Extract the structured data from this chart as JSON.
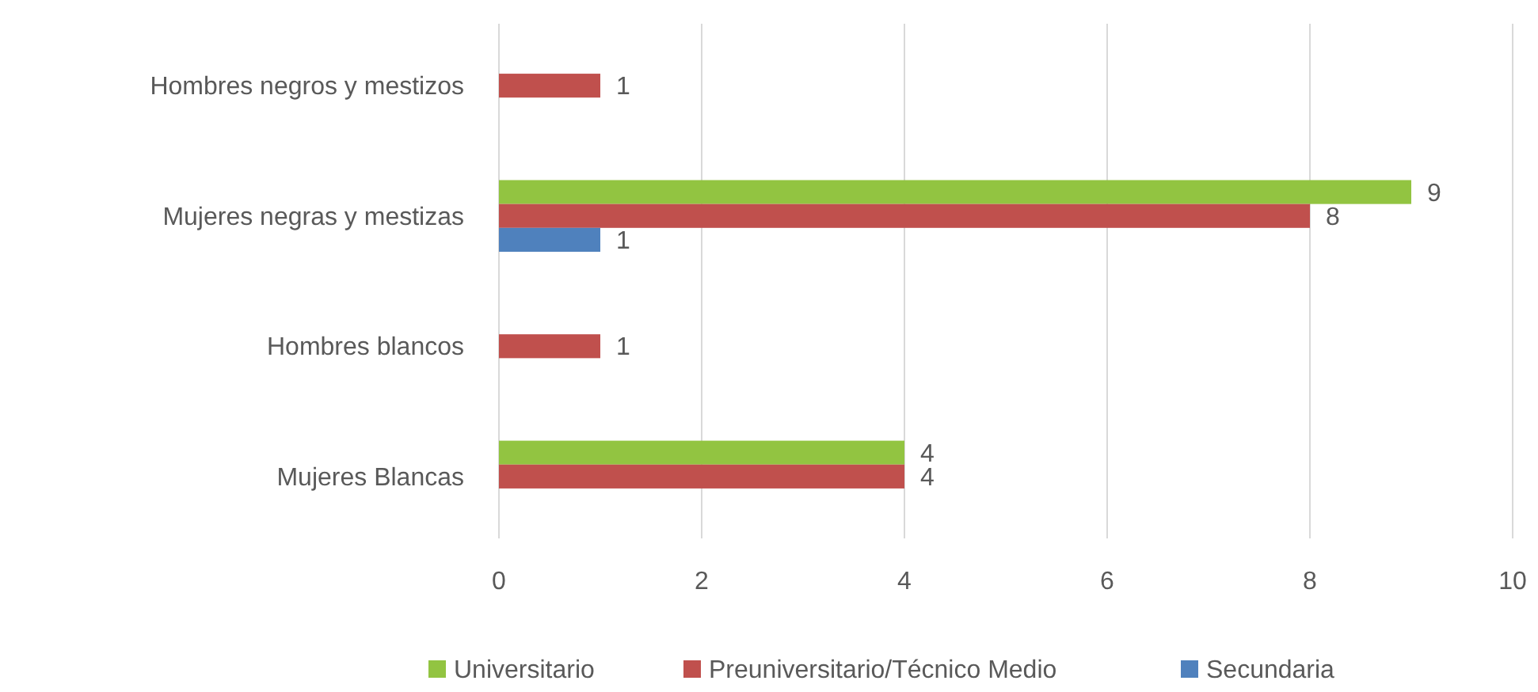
{
  "chart_data": {
    "type": "bar",
    "orientation": "horizontal",
    "categories": [
      "Hombres negros y mestizos",
      "Mujeres negras y mestizas",
      "Hombres blancos",
      "Mujeres Blancas"
    ],
    "series": [
      {
        "name": "Universitario",
        "color": "#92c441",
        "values": [
          null,
          9,
          null,
          4
        ]
      },
      {
        "name": "Preuniversitario/Técnico Medio",
        "color": "#c0504d",
        "values": [
          1,
          8,
          1,
          4
        ]
      },
      {
        "name": "Secundaria",
        "color": "#4f81bd",
        "values": [
          null,
          1,
          null,
          null
        ]
      }
    ],
    "xlim": [
      0,
      10
    ],
    "xticks": [
      0,
      2,
      4,
      6,
      8,
      10
    ],
    "grid": "x",
    "legend": "bottom",
    "data_labels": true
  }
}
